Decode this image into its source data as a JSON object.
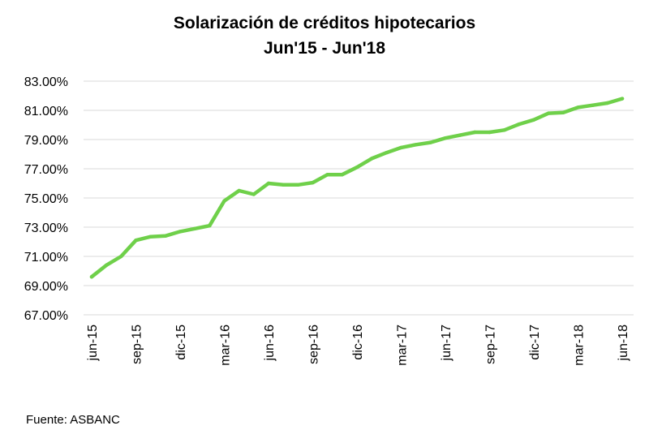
{
  "chart_data": {
    "type": "line",
    "title": "Solarización de créditos hipotecarios",
    "subtitle": "Jun'15 - Jun'18",
    "xlabel": "",
    "ylabel": "",
    "ylim": [
      67,
      83
    ],
    "y_ticks": [
      "67.00%",
      "69.00%",
      "71.00%",
      "73.00%",
      "75.00%",
      "77.00%",
      "79.00%",
      "81.00%",
      "83.00%"
    ],
    "x_tick_labels": [
      "jun-15",
      "sep-15",
      "dic-15",
      "mar-16",
      "jun-16",
      "sep-16",
      "dic-16",
      "mar-17",
      "jun-17",
      "sep-17",
      "dic-17",
      "mar-18",
      "jun-18"
    ],
    "grid": "horizontal",
    "line_color": "#6fd04a",
    "series": [
      {
        "values": [
          69.6,
          70.4,
          71.0,
          72.1,
          72.35,
          72.4,
          72.7,
          72.9,
          73.1,
          74.8,
          75.5,
          75.25,
          76.0,
          75.9,
          75.9,
          76.05,
          76.6,
          76.6,
          77.1,
          77.7,
          78.1,
          78.45,
          78.65,
          78.8,
          79.1,
          79.3,
          79.5,
          79.5,
          79.65,
          80.05,
          80.35,
          80.8,
          80.85,
          81.2,
          81.35,
          81.5,
          81.8
        ]
      }
    ]
  },
  "source": "Fuente: ASBANC"
}
